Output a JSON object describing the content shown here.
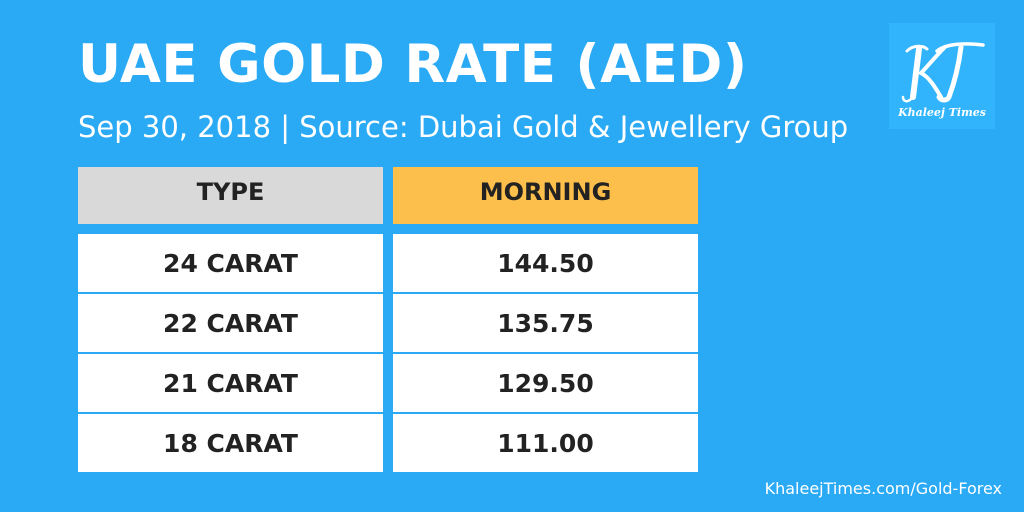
{
  "header": {
    "title": "UAE GOLD RATE (AED)",
    "subtitle": "Sep 30, 2018 | Source: Dubai Gold & Jewellery Group"
  },
  "logo": {
    "icon": "khaleej-times-logo-icon",
    "monogram": "KT",
    "wordmark": "Khaleej Times"
  },
  "table": {
    "columns": [
      "TYPE",
      "MORNING"
    ],
    "rows": [
      {
        "type": "24 CARAT",
        "morning": "144.50"
      },
      {
        "type": "22 CARAT",
        "morning": "135.75"
      },
      {
        "type": "21 CARAT",
        "morning": "129.50"
      },
      {
        "type": "18 CARAT",
        "morning": "111.00"
      }
    ]
  },
  "footer": {
    "source_link": "KhaleejTimes.com/Gold-Forex"
  },
  "colors": {
    "background": "#2aa9f5",
    "type_header": "#d9d9d9",
    "morning_header": "#fdbf4b",
    "cell": "#ffffff",
    "text": "#222222"
  }
}
